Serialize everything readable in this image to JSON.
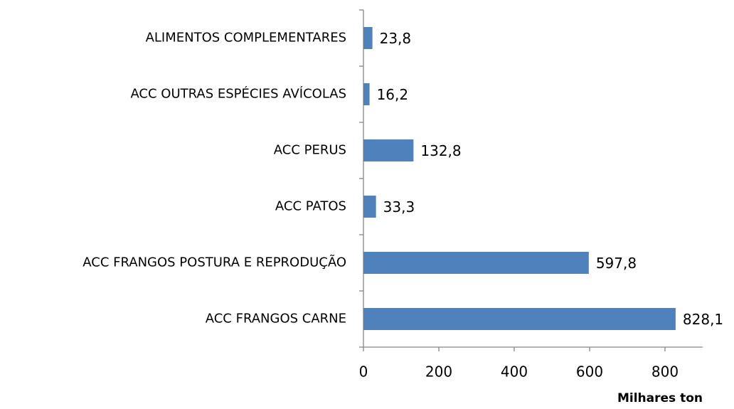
{
  "chart_data": {
    "type": "bar",
    "orientation": "horizontal",
    "categories": [
      "ALIMENTOS COMPLEMENTARES",
      "ACC OUTRAS ESPÉCIES AVÍCOLAS",
      "ACC PERUS",
      "ACC PATOS",
      "ACC FRANGOS POSTURA E REPRODUÇÃO",
      "ACC FRANGOS CARNE"
    ],
    "values": [
      23.8,
      16.2,
      132.8,
      33.3,
      597.8,
      828.1
    ],
    "value_labels": [
      "23,8",
      "16,2",
      "132,8",
      "33,3",
      "597,8",
      "828,1"
    ],
    "color": "#4f81bd",
    "xlim": [
      0,
      900
    ],
    "xticks": [
      0,
      200,
      400,
      600,
      800
    ],
    "x_label": "Milhares ton",
    "grid": false
  }
}
